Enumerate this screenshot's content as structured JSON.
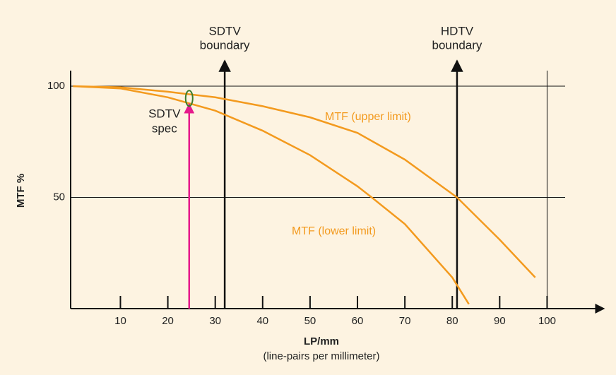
{
  "chart_data": {
    "type": "line",
    "x_label": "LP/mm",
    "x_sublabel": "(line-pairs per millimeter)",
    "y_label": "MTF %",
    "xlim": [
      -0.5,
      112
    ],
    "ylim": [
      0,
      107
    ],
    "xticks": [
      10,
      20,
      30,
      40,
      50,
      60,
      70,
      80,
      90,
      100
    ],
    "yticks": [
      50,
      100
    ],
    "grid": true,
    "series": [
      {
        "name": "MTF (upper limit)",
        "color": "#f39a1e",
        "x": [
          0,
          10,
          20,
          30,
          40,
          50,
          60,
          70,
          81,
          90,
          97.5
        ],
        "values": [
          100,
          99.5,
          97.5,
          95,
          91,
          86,
          79,
          67,
          50,
          31,
          14
        ]
      },
      {
        "name": "MTF (lower limit)",
        "color": "#f39a1e",
        "x": [
          0,
          10,
          20,
          30,
          40,
          50,
          60,
          63,
          70,
          80,
          83.5
        ],
        "values": [
          100,
          99,
          95,
          89,
          80,
          69,
          55,
          50,
          38,
          14,
          2
        ]
      }
    ],
    "markers": [
      {
        "x": 32,
        "label": [
          "SDTV",
          "boundary"
        ]
      },
      {
        "x": 81,
        "label": [
          "HDTV",
          "boundary"
        ]
      }
    ],
    "spec": {
      "x": 24.5,
      "y": 92,
      "label": [
        "SDTV",
        "spec"
      ],
      "color": "#e6198c",
      "ring_color": "#3a7d2c"
    }
  }
}
